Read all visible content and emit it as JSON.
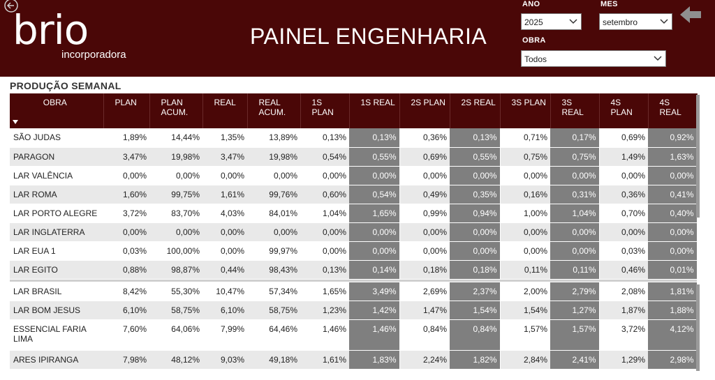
{
  "header": {
    "logo_main": "brio",
    "logo_sub": "incorporadora",
    "title": "PAINEL ENGENHARIA",
    "background_color": "#4a0707"
  },
  "filters": {
    "ano": {
      "label": "ANO",
      "value": "2025"
    },
    "mes": {
      "label": "MES",
      "value": "setembro"
    },
    "obra": {
      "label": "OBRA",
      "value": "Todos"
    }
  },
  "icons": {
    "back": "back-arrow-circle-icon",
    "forward": "arrow-left-icon",
    "chevron": "chevron-down-icon",
    "sort": "sort-descending-icon"
  },
  "section": {
    "title": "PRODUÇÃO SEMANAL"
  },
  "table": {
    "columns": [
      "OBRA",
      "PLAN",
      "PLAN ACUM.",
      "REAL",
      "REAL ACUM.",
      "1S PLAN",
      "1S REAL",
      "2S PLAN",
      "2S REAL",
      "3S PLAN",
      "3S REAL",
      "4S PLAN",
      "4S REAL"
    ],
    "rows_top": [
      [
        "SÃO JUDAS",
        "1,89%",
        "14,44%",
        "1,35%",
        "13,89%",
        "0,13%",
        "0,13%",
        "0,36%",
        "0,13%",
        "0,71%",
        "0,17%",
        "0,69%",
        "0,92%"
      ],
      [
        "PARAGON",
        "3,47%",
        "19,98%",
        "3,47%",
        "19,98%",
        "0,54%",
        "0,55%",
        "0,69%",
        "0,55%",
        "0,75%",
        "0,75%",
        "1,49%",
        "1,63%"
      ],
      [
        "LAR VALÊNCIA",
        "0,00%",
        "0,00%",
        "0,00%",
        "0,00%",
        "0,00%",
        "0,00%",
        "0,00%",
        "0,00%",
        "0,00%",
        "0,00%",
        "0,00%",
        "0,00%"
      ],
      [
        "LAR ROMA",
        "1,60%",
        "99,75%",
        "1,61%",
        "99,76%",
        "0,60%",
        "0,54%",
        "0,49%",
        "0,35%",
        "0,16%",
        "0,31%",
        "0,36%",
        "0,41%"
      ],
      [
        "LAR PORTO ALEGRE",
        "3,72%",
        "83,70%",
        "4,03%",
        "84,01%",
        "1,04%",
        "1,65%",
        "0,99%",
        "0,94%",
        "1,00%",
        "1,04%",
        "0,70%",
        "0,40%"
      ],
      [
        "LAR INGLATERRA",
        "0,00%",
        "0,00%",
        "0,00%",
        "0,00%",
        "0,00%",
        "0,00%",
        "0,00%",
        "0,00%",
        "0,00%",
        "0,00%",
        "0,00%",
        "0,00%"
      ],
      [
        "LAR EUA 1",
        "0,03%",
        "100,00%",
        "0,00%",
        "99,97%",
        "0,00%",
        "0,00%",
        "0,00%",
        "0,00%",
        "0,00%",
        "0,00%",
        "0,03%",
        "0,00%"
      ],
      [
        "LAR EGITO",
        "0,88%",
        "98,87%",
        "0,44%",
        "98,43%",
        "0,13%",
        "0,14%",
        "0,18%",
        "0,18%",
        "0,11%",
        "0,11%",
        "0,46%",
        "0,01%"
      ]
    ],
    "rows_bottom": [
      [
        "LAR BRASIL",
        "8,42%",
        "55,30%",
        "10,47%",
        "57,34%",
        "1,65%",
        "3,49%",
        "2,69%",
        "2,37%",
        "2,00%",
        "2,79%",
        "2,08%",
        "1,81%"
      ],
      [
        "LAR BOM JESUS",
        "6,10%",
        "58,75%",
        "6,10%",
        "58,75%",
        "1,23%",
        "1,42%",
        "1,47%",
        "1,54%",
        "1,54%",
        "1,27%",
        "1,87%",
        "1,88%"
      ],
      [
        "ESSENCIAL FARIA LIMA",
        "7,60%",
        "64,06%",
        "7,99%",
        "64,46%",
        "1,46%",
        "1,46%",
        "0,84%",
        "0,84%",
        "1,57%",
        "1,57%",
        "3,72%",
        "4,12%"
      ],
      [
        "ARES IPIRANGA",
        "7,98%",
        "48,12%",
        "9,03%",
        "49,18%",
        "1,61%",
        "1,83%",
        "2,24%",
        "1,82%",
        "2,84%",
        "2,41%",
        "1,29%",
        "2,98%"
      ]
    ]
  }
}
